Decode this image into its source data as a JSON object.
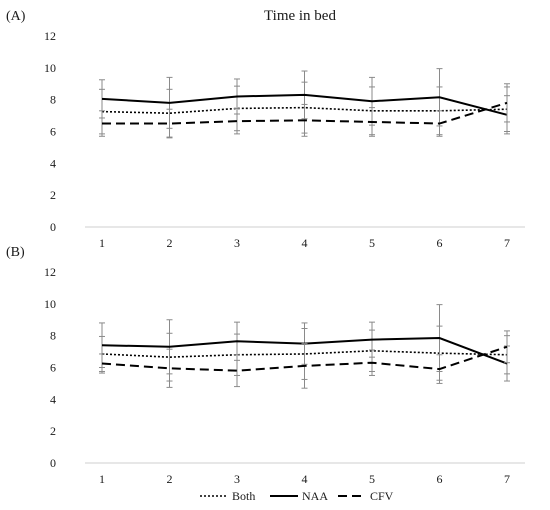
{
  "chart_data": [
    {
      "type": "line",
      "panel_label": "(A)",
      "title": "Time in bed",
      "categories": [
        1,
        2,
        3,
        4,
        5,
        6,
        7
      ],
      "ylim": [
        0,
        12
      ],
      "yticks": [
        0,
        2,
        4,
        6,
        8,
        10,
        12
      ],
      "grid": false,
      "series": [
        {
          "name": "Both",
          "values": [
            7.25,
            7.15,
            7.45,
            7.5,
            7.3,
            7.3,
            7.4
          ],
          "error": [
            1.4,
            1.5,
            1.4,
            1.6,
            1.5,
            1.5,
            1.4
          ]
        },
        {
          "name": "NAA",
          "values": [
            8.05,
            7.8,
            8.2,
            8.3,
            7.9,
            8.15,
            7.05
          ],
          "error": [
            1.2,
            1.6,
            1.1,
            1.5,
            1.5,
            1.8,
            1.2
          ]
        },
        {
          "name": "CFV",
          "values": [
            6.5,
            6.5,
            6.65,
            6.7,
            6.6,
            6.5,
            7.8
          ],
          "error": [
            0.8,
            0.9,
            0.8,
            1.0,
            0.9,
            0.8,
            1.2
          ]
        }
      ]
    },
    {
      "type": "line",
      "panel_label": "(B)",
      "title": "",
      "categories": [
        1,
        2,
        3,
        4,
        5,
        6,
        7
      ],
      "ylim": [
        0,
        12
      ],
      "yticks": [
        0,
        2,
        4,
        6,
        8,
        10,
        12
      ],
      "grid": false,
      "series": [
        {
          "name": "Both",
          "values": [
            6.85,
            6.65,
            6.8,
            6.85,
            7.05,
            6.9,
            6.8
          ],
          "error": [
            1.1,
            1.5,
            1.3,
            1.6,
            1.3,
            1.7,
            1.2
          ]
        },
        {
          "name": "NAA",
          "values": [
            7.4,
            7.3,
            7.65,
            7.5,
            7.75,
            7.85,
            6.25
          ],
          "error": [
            1.4,
            1.7,
            1.2,
            1.3,
            1.1,
            2.1,
            1.1
          ]
        },
        {
          "name": "CFV",
          "values": [
            6.25,
            5.95,
            5.8,
            6.1,
            6.3,
            5.9,
            7.3
          ],
          "error": [
            0.6,
            1.2,
            1.0,
            1.4,
            0.8,
            0.9,
            1.0
          ]
        }
      ]
    }
  ],
  "legend": {
    "placement": "bottom",
    "items": [
      {
        "name": "Both",
        "style": "dotted"
      },
      {
        "name": "NAA",
        "style": "solid"
      },
      {
        "name": "CFV",
        "style": "dashed"
      }
    ]
  },
  "colors": {
    "line": "#000000",
    "error_bar": "#8a8a8a",
    "axis": "#cfcfcf"
  }
}
